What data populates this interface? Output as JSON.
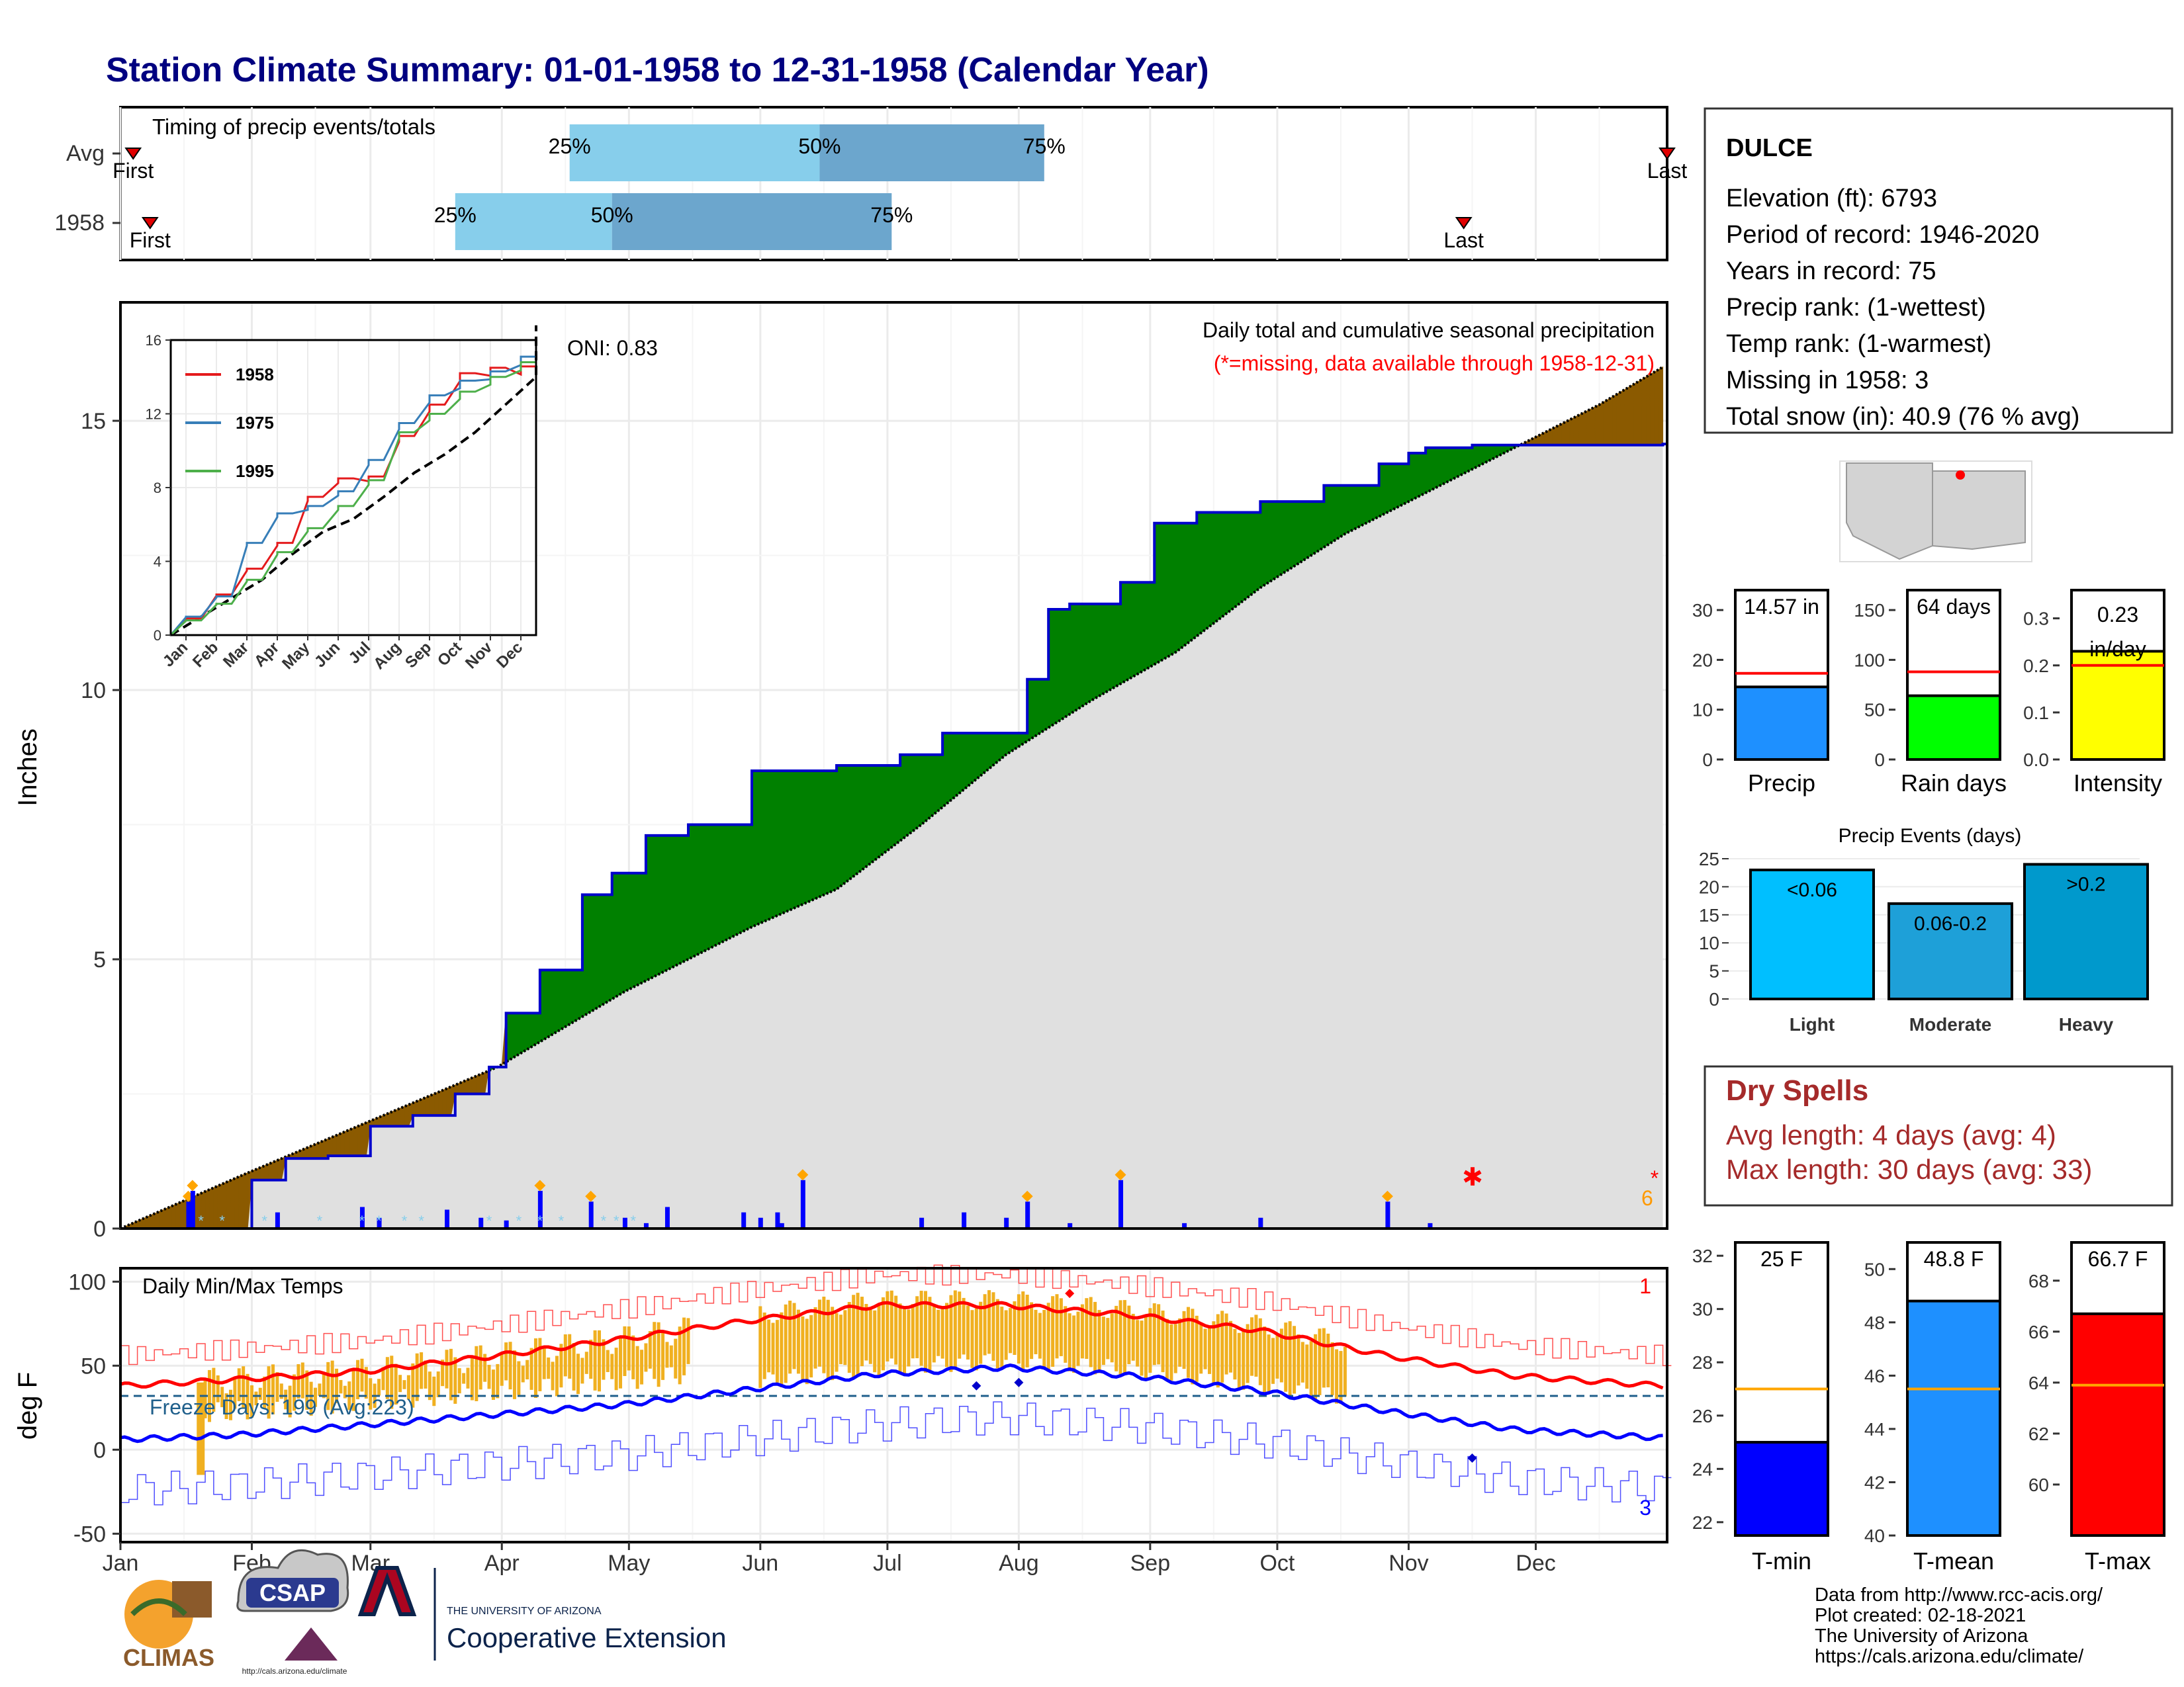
{
  "title": "Station Climate Summary: 01-01-1958 to 12-31-1958 (Calendar Year)",
  "colors": {
    "title": "#000080",
    "cum_fill": "#008000",
    "deficit_fill": "#8b5a00",
    "grey_fill": "#e0e0e0",
    "observed_line": "#0000cc",
    "avg_line": "#000000",
    "light_q": "#87ceeb",
    "dark_q": "#6ca6cd",
    "hist_red": "#ff0000",
    "hist_blue": "#0000ff",
    "temp_bar": "#f0b020",
    "freeze": "#1f5f8b",
    "drybox_text": "#a52a2a"
  },
  "timing": {
    "title": "Timing of precip events/totals",
    "rows": [
      {
        "label": "Avg",
        "q25": 107,
        "q50": 166,
        "q75": 219,
        "first": 4,
        "last": 366,
        "p25": "25%",
        "p50": "50%",
        "p75": "75%",
        "first_label": "First",
        "last_label": "Last"
      },
      {
        "label": "1958",
        "q25": 80,
        "q50": 117,
        "q75": 183,
        "first": 8,
        "last": 318,
        "p25": "25%",
        "p50": "50%",
        "p75": "75%",
        "first_label": "First",
        "last_label": "Last"
      }
    ]
  },
  "months": [
    "Jan",
    "Feb",
    "Mar",
    "Apr",
    "May",
    "Jun",
    "Jul",
    "Aug",
    "Sep",
    "Oct",
    "Nov",
    "Dec"
  ],
  "station": {
    "name": "DULCE",
    "lines": [
      "Elevation (ft): 6793",
      "Period of record: 1946-2020",
      "Years in record: 75",
      "Precip rank:  (1-wettest)",
      "Temp rank:  (1-warmest)",
      "Missing in 1958: 3",
      "Total snow (in): 40.9 (76 % avg)"
    ]
  },
  "precip_panel": {
    "ylabel": "Inches",
    "oni": "ONI: 0.83",
    "caption1": "Daily total and cumulative seasonal precipitation",
    "caption2": "(*=missing, data available through 1958-12-31)",
    "missing_count": "6",
    "yticks": [
      0,
      5,
      10,
      15
    ],
    "ylim": [
      0,
      17.2
    ]
  },
  "inset": {
    "yticks": [
      0,
      4,
      8,
      12,
      16
    ],
    "legend": [
      "1958",
      "1975",
      "1995"
    ],
    "legend_colors": [
      "#e41a1c",
      "#377eb8",
      "#4daf4a"
    ],
    "months": [
      "Jan",
      "Feb",
      "Mar",
      "Apr",
      "May",
      "Jun",
      "Jul",
      "Aug",
      "Sep",
      "Oct",
      "Nov",
      "Dec"
    ]
  },
  "summary_bars": [
    {
      "key": "precip",
      "label": "Precip",
      "value": 14.57,
      "avg": 17.3,
      "text": "14.57 in",
      "yticks": [
        0,
        10,
        20,
        30
      ],
      "ylim": [
        0,
        34
      ],
      "color": "#1e90ff"
    },
    {
      "key": "raindays",
      "label": "Rain days",
      "value": 64,
      "avg": 88,
      "text": "64 days",
      "yticks": [
        0,
        50,
        100,
        150
      ],
      "ylim": [
        0,
        170
      ],
      "color": "#00ff00"
    },
    {
      "key": "intensity",
      "label": "Intensity",
      "value": 0.23,
      "avg": 0.2,
      "text": "0.23 in/day",
      "yticks": [
        "0.0",
        "0.1",
        "0.2",
        "0.3"
      ],
      "ylim": [
        0,
        0.36
      ],
      "color": "#ffff00"
    }
  ],
  "events": {
    "title": "Precip Events (days)",
    "yticks": [
      0,
      5,
      10,
      15,
      20,
      25
    ],
    "ylim": [
      0,
      25
    ],
    "bars": [
      {
        "label": "Light",
        "inner": "<0.06",
        "value": 23,
        "color": "#00bfff"
      },
      {
        "label": "Moderate",
        "inner": "0.06-0.2",
        "value": 17,
        "color": "#1ea0d8"
      },
      {
        "label": "Heavy",
        "inner": ">0.2",
        "value": 24,
        "color": "#0099cc"
      }
    ]
  },
  "dry_spells": {
    "title": "Dry Spells",
    "avg": "Avg length: 4 days (avg: 4)",
    "max": "Max length: 30 days (avg: 33)"
  },
  "temp_panel": {
    "ylabel": "deg F",
    "title": "Daily Min/Max Temps",
    "freeze": "Freeze Days: 199 (Avg:223)",
    "count_top": "1",
    "count_bottom": "3",
    "yticks": [
      -50,
      0,
      50,
      100
    ],
    "ylim": [
      -55,
      108
    ]
  },
  "temp_bars": [
    {
      "key": "tmin",
      "label": "T-min",
      "value": 25,
      "avg": 27,
      "text": "25 F",
      "yticks": [
        22,
        24,
        26,
        28,
        30,
        32
      ],
      "ylim": [
        21.5,
        32.5
      ],
      "color": "#0000ff"
    },
    {
      "key": "tmean",
      "label": "T-mean",
      "value": 48.8,
      "avg": 45.5,
      "text": "48.8 F",
      "yticks": [
        40,
        42,
        44,
        46,
        48,
        50
      ],
      "ylim": [
        40,
        51
      ],
      "color": "#1e90ff"
    },
    {
      "key": "tmax",
      "label": "T-max",
      "value": 66.7,
      "avg": 63.9,
      "text": "66.7 F",
      "yticks": [
        60,
        62,
        64,
        66,
        68
      ],
      "ylim": [
        58,
        69.5
      ],
      "color": "#ff0000"
    }
  ],
  "logos": {
    "climas": "CLIMAS",
    "csap": "CSAP",
    "csap_url": "http://cals.arizona.edu/climate",
    "ua_small": "THE UNIVERSITY OF ARIZONA",
    "ua_big": "Cooperative Extension"
  },
  "credits": [
    "Data from http://www.rcc-acis.org/",
    "Plot created: 02-18-2021",
    "The University of Arizona",
    "https://cals.arizona.edu/climate/"
  ],
  "chart_data": [
    {
      "type": "area",
      "x_unit": "day of year 1958",
      "observed_cumulative": {
        "x": [
          1,
          32,
          40,
          50,
          60,
          70,
          80,
          88,
          92,
          100,
          110,
          117,
          125,
          135,
          150,
          160,
          170,
          185,
          195,
          215,
          220,
          225,
          237,
          245,
          255,
          270,
          285,
          298,
          305,
          309,
          320,
          340,
          365
        ],
        "y": [
          0,
          0.9,
          1.3,
          1.35,
          1.9,
          2.1,
          2.5,
          3.0,
          4.0,
          4.8,
          6.2,
          6.6,
          7.3,
          7.5,
          8.5,
          8.5,
          8.6,
          8.8,
          9.2,
          10.2,
          11.5,
          11.6,
          12.0,
          13.1,
          13.3,
          13.5,
          13.8,
          14.2,
          14.4,
          14.5,
          14.55,
          14.55,
          14.57
        ]
      },
      "average_cumulative": {
        "x": [
          1,
          30,
          60,
          90,
          120,
          150,
          170,
          190,
          210,
          230,
          250,
          270,
          290,
          310,
          330,
          350,
          365
        ],
        "y": [
          0,
          1.0,
          2.0,
          3.0,
          4.4,
          5.6,
          6.3,
          7.5,
          8.8,
          9.8,
          10.7,
          11.9,
          12.9,
          13.7,
          14.5,
          15.3,
          16.0
        ]
      },
      "daily_precip": {
        "x": [
          17,
          18,
          38,
          58,
          62,
          78,
          86,
          92,
          100,
          112,
          120,
          125,
          130,
          148,
          152,
          156,
          157,
          162,
          190,
          200,
          210,
          215,
          225,
          237,
          252,
          270,
          300,
          310
        ],
        "y": [
          0.5,
          0.7,
          0.3,
          0.4,
          0.2,
          0.35,
          0.2,
          0.15,
          0.7,
          0.5,
          0.2,
          0.1,
          0.4,
          0.3,
          0.2,
          0.3,
          0.1,
          0.9,
          0.2,
          0.3,
          0.2,
          0.5,
          0.1,
          0.9,
          0.1,
          0.2,
          0.5,
          0.1
        ]
      }
    },
    {
      "type": "line",
      "x_unit": "month",
      "categories": [
        "Jan",
        "Feb",
        "Mar",
        "Apr",
        "May",
        "Jun",
        "Jul",
        "Aug",
        "Sep",
        "Oct",
        "Nov",
        "Dec"
      ],
      "series": [
        {
          "name": "1958",
          "values": [
            0.9,
            2.2,
            3.6,
            5.0,
            7.5,
            8.5,
            8.6,
            10.8,
            12.5,
            14.2,
            14.5,
            14.57
          ]
        },
        {
          "name": "1975",
          "values": [
            1.0,
            2.1,
            5.0,
            6.6,
            7.0,
            7.8,
            9.5,
            11.5,
            13.0,
            13.8,
            14.3,
            15.1
          ]
        },
        {
          "name": "1995",
          "values": [
            0.8,
            1.7,
            3.0,
            4.5,
            5.8,
            7.0,
            8.4,
            11.0,
            12.0,
            13.2,
            14.0,
            14.8
          ]
        }
      ],
      "ylim": [
        0,
        16
      ]
    },
    {
      "type": "bar",
      "categories": [
        "Precip",
        "Rain days",
        "Intensity"
      ],
      "values": [
        14.57,
        64,
        0.23
      ]
    },
    {
      "type": "bar",
      "title": "Precip Events (days)",
      "categories": [
        "Light",
        "Moderate",
        "Heavy"
      ],
      "values": [
        23,
        17,
        24
      ],
      "ylim": [
        0,
        25
      ]
    },
    {
      "type": "line",
      "title": "Daily Min/Max Temps",
      "x_unit": "day of year 1958",
      "avg_tmax": {
        "x": [
          1,
          30,
          60,
          90,
          120,
          150,
          180,
          210,
          240,
          270,
          300,
          330,
          365
        ],
        "y": [
          38,
          42,
          47,
          56,
          66,
          77,
          86,
          86,
          80,
          71,
          56,
          44,
          38
        ]
      },
      "avg_tmin": {
        "x": [
          1,
          30,
          60,
          90,
          120,
          150,
          180,
          210,
          240,
          270,
          300,
          330,
          365
        ],
        "y": [
          6,
          9,
          15,
          21,
          27,
          36,
          45,
          49,
          44,
          35,
          23,
          12,
          7
        ]
      },
      "freeze_line": 32,
      "ylim": [
        -55,
        108
      ]
    },
    {
      "type": "bar",
      "categories": [
        "T-min",
        "T-mean",
        "T-max"
      ],
      "values": [
        25,
        48.8,
        66.7
      ]
    }
  ]
}
